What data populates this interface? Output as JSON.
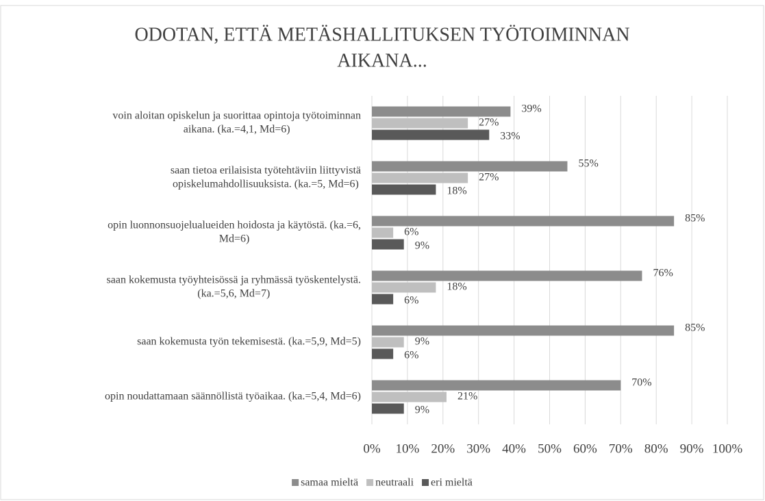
{
  "chart_data": {
    "type": "barh",
    "title": [
      "ODOTAN, ETTÄ METÄSHALLITUKSEN TYÖTOIMINNAN",
      "AIKANA..."
    ],
    "categories": [
      [
        "voin aloitan opiskelun ja suorittaa opintoja työtoiminnan",
        "aikana. (ka.=4,1, Md=6)"
      ],
      [
        "saan tietoa erilaisista työtehtäviin liittyvistä",
        "opiskelumahdollisuuksista. (ka.=5, Md=6)"
      ],
      [
        "opin luonnonsuojelualueiden hoidosta ja käytöstä. (ka.=6,",
        "Md=6)"
      ],
      [
        "saan kokemusta työyhteisössä ja ryhmässä työskentelystä.",
        "(ka.=5,6, Md=7)"
      ],
      [
        "saan kokemusta työn tekemisestä. (ka.=5,9, Md=5)"
      ],
      [
        "opin noudattamaan säännöllistä työaikaa. (ka.=5,4, Md=6)"
      ]
    ],
    "series": [
      {
        "name": "samaa mieltä",
        "color": "#8c8c8c",
        "values": [
          39,
          55,
          85,
          76,
          85,
          70
        ],
        "value_labels": [
          "39%",
          "55%",
          "85%",
          "76%",
          "85%",
          "70%"
        ]
      },
      {
        "name": "neutraali",
        "color": "#bfbfbf",
        "values": [
          27,
          27,
          6,
          18,
          9,
          21
        ],
        "value_labels": [
          "27%",
          "27%",
          "6%",
          "18%",
          "9%",
          "21%"
        ]
      },
      {
        "name": "eri mieltä",
        "color": "#595959",
        "values": [
          33,
          18,
          9,
          6,
          6,
          9
        ],
        "value_labels": [
          "33%",
          "18%",
          "9%",
          "6%",
          "6%",
          "9%"
        ]
      }
    ],
    "xlim": [
      0,
      100
    ],
    "xticks": [
      {
        "value": 0,
        "label": "0%"
      },
      {
        "value": 10,
        "label": "10%"
      },
      {
        "value": 20,
        "label": "20%"
      },
      {
        "value": 30,
        "label": "30%"
      },
      {
        "value": 40,
        "label": "40%"
      },
      {
        "value": 50,
        "label": "50%"
      },
      {
        "value": 60,
        "label": "60%"
      },
      {
        "value": 70,
        "label": "70%"
      },
      {
        "value": 80,
        "label": "80%"
      },
      {
        "value": 90,
        "label": "90%"
      },
      {
        "value": 100,
        "label": "100%"
      }
    ],
    "grid": true,
    "legend": "bottom"
  }
}
